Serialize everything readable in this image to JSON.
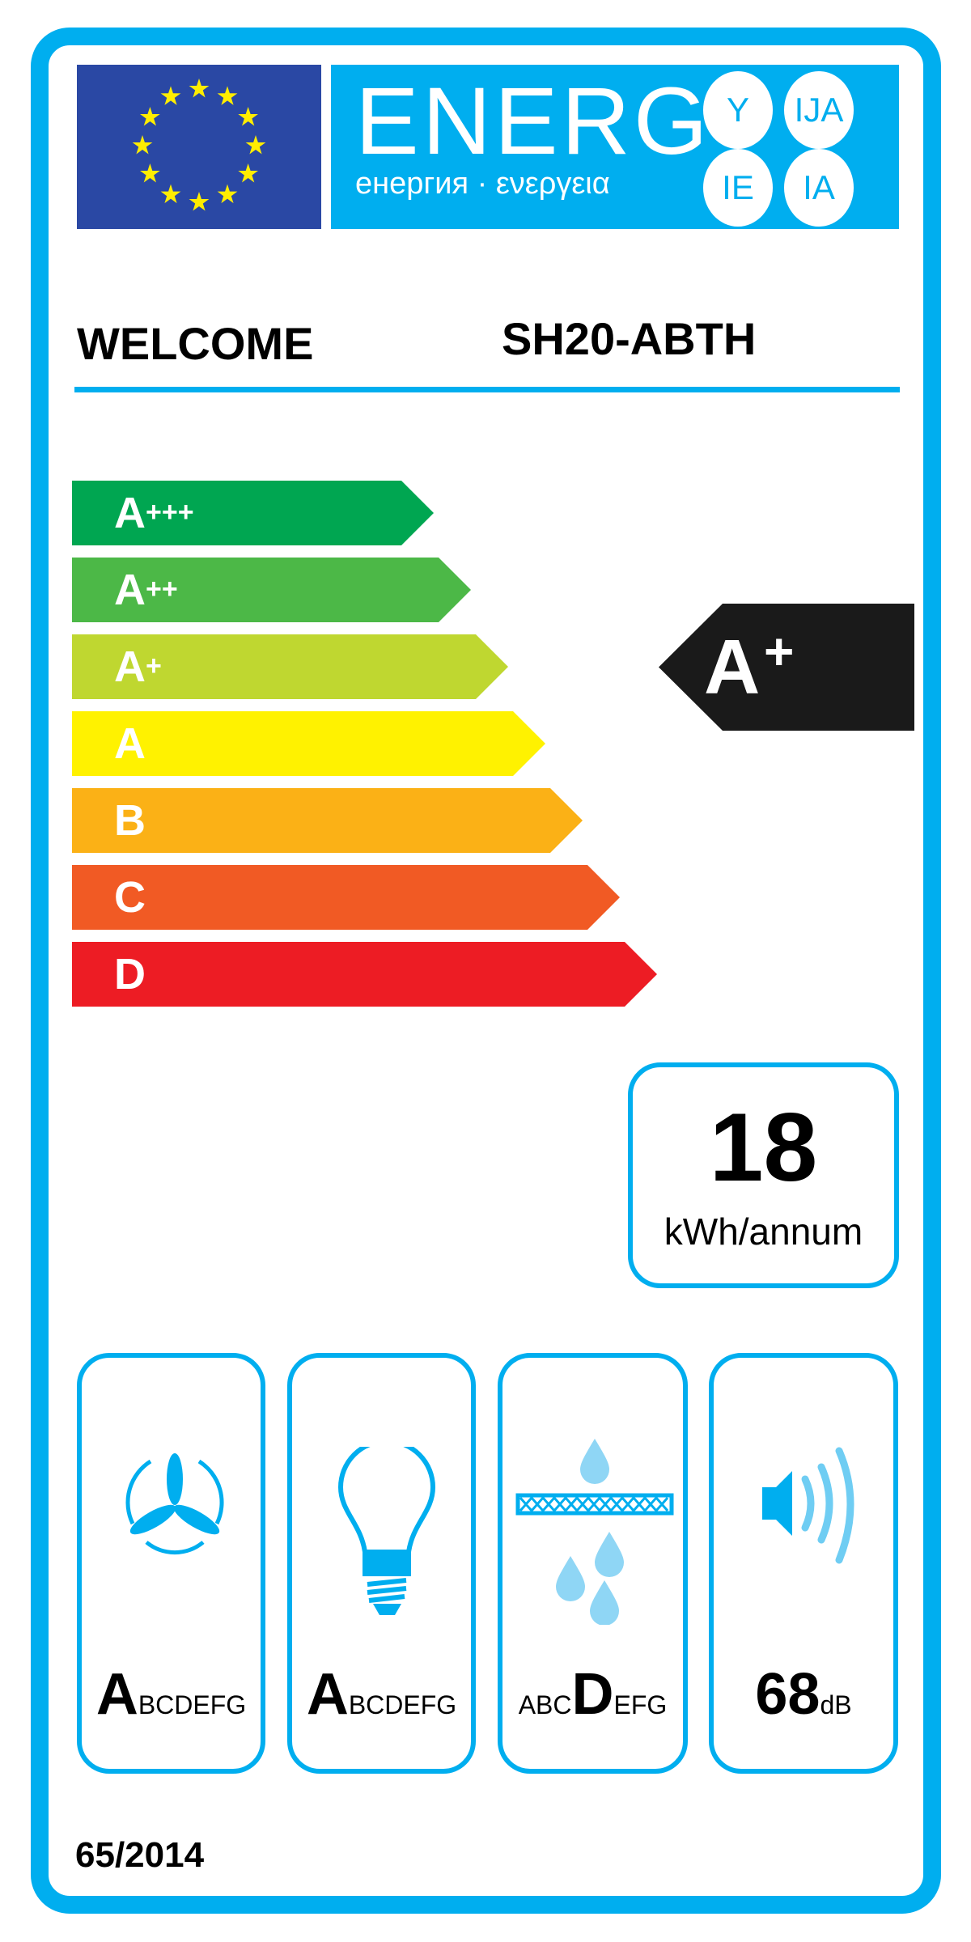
{
  "header": {
    "energy_word": "ENERG",
    "energy_subtitle": "енергия · ενεργεια",
    "language_suffixes": [
      "Y",
      "IJA",
      "IE",
      "IA"
    ],
    "supplier": "WELCOME",
    "model": "SH20-ABTH"
  },
  "scale": {
    "classes": [
      {
        "base": "A",
        "plus": "+++",
        "color": "#00a651"
      },
      {
        "base": "A",
        "plus": "++",
        "color": "#4cb847"
      },
      {
        "base": "A",
        "plus": "+",
        "color": "#bfd730"
      },
      {
        "base": "A",
        "plus": "",
        "color": "#fff200"
      },
      {
        "base": "B",
        "plus": "",
        "color": "#fbb116"
      },
      {
        "base": "C",
        "plus": "",
        "color": "#f15a24"
      },
      {
        "base": "D",
        "plus": "",
        "color": "#ed1c24"
      }
    ],
    "rating": {
      "base": "A",
      "plus": "+"
    }
  },
  "consumption": {
    "value": "18",
    "unit": "kWh/annum"
  },
  "pictograms": [
    {
      "icon": "fan-icon",
      "big": "A",
      "small_after": "BCDEFG",
      "small_before": ""
    },
    {
      "icon": "light-bulb-icon",
      "big": "A",
      "small_after": "BCDEFG",
      "small_before": ""
    },
    {
      "icon": "grease-filter-icon",
      "big": "D",
      "small_before": "ABC",
      "small_after": "EFG"
    },
    {
      "icon": "speaker-icon",
      "big": "68",
      "small_after": "dB",
      "small_before": ""
    }
  ],
  "regulation": "65/2014",
  "colors": {
    "frame": "#00aeef",
    "flag": "#2a48a4",
    "stars": "#ffed00",
    "indicator": "#1a1a1a"
  }
}
